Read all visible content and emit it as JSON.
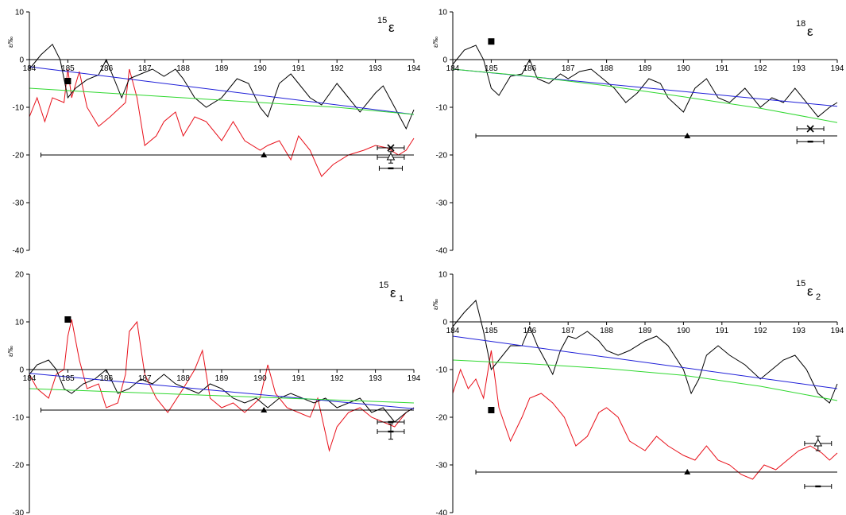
{
  "chart_data": [
    {
      "type": "line",
      "title_sup": "15",
      "title_main": "ε",
      "title_sub": "",
      "ylabel": "ε/‰",
      "ylim": [
        -40,
        10
      ],
      "yticks": [
        10,
        0,
        -10,
        -20,
        -30,
        -40
      ],
      "xlim": [
        184,
        194
      ],
      "xticks": [
        184,
        185,
        186,
        187,
        188,
        189,
        190,
        191,
        192,
        193,
        194
      ],
      "black_series": [
        [
          184,
          -2
        ],
        [
          184.3,
          1
        ],
        [
          184.6,
          3.2
        ],
        [
          184.8,
          0
        ],
        [
          185,
          -8
        ],
        [
          185.2,
          -6
        ],
        [
          185.5,
          -4.2
        ],
        [
          185.8,
          -3.2
        ],
        [
          186,
          0
        ],
        [
          186.2,
          -4
        ],
        [
          186.4,
          -8
        ],
        [
          186.6,
          -4
        ],
        [
          186.9,
          -3
        ],
        [
          187.2,
          -2
        ],
        [
          187.5,
          -3.5
        ],
        [
          187.8,
          -2
        ],
        [
          188,
          -4
        ],
        [
          188.3,
          -8
        ],
        [
          188.6,
          -10
        ],
        [
          189,
          -8
        ],
        [
          189.4,
          -4
        ],
        [
          189.7,
          -5
        ],
        [
          190,
          -10
        ],
        [
          190.2,
          -12
        ],
        [
          190.5,
          -5
        ],
        [
          190.8,
          -3
        ],
        [
          191,
          -5
        ],
        [
          191.3,
          -8
        ],
        [
          191.6,
          -9.5
        ],
        [
          192,
          -5
        ],
        [
          192.3,
          -8
        ],
        [
          192.6,
          -11
        ],
        [
          193,
          -7
        ],
        [
          193.2,
          -5.5
        ],
        [
          193.5,
          -10
        ],
        [
          193.8,
          -14.5
        ],
        [
          194,
          -10.5
        ]
      ],
      "red_series": [
        [
          184,
          -12
        ],
        [
          184.2,
          -8
        ],
        [
          184.4,
          -13
        ],
        [
          184.6,
          -8
        ],
        [
          184.9,
          -9
        ],
        [
          185,
          -2
        ],
        [
          185.1,
          -8
        ],
        [
          185.3,
          -2.5
        ],
        [
          185.5,
          -10
        ],
        [
          185.8,
          -14
        ],
        [
          186.1,
          -12
        ],
        [
          186.5,
          -9
        ],
        [
          186.6,
          -2
        ],
        [
          186.8,
          -8
        ],
        [
          187,
          -18
        ],
        [
          187.3,
          -16
        ],
        [
          187.5,
          -13
        ],
        [
          187.8,
          -11
        ],
        [
          188,
          -16
        ],
        [
          188.3,
          -12
        ],
        [
          188.6,
          -13
        ],
        [
          189,
          -17
        ],
        [
          189.3,
          -13
        ],
        [
          189.6,
          -17
        ],
        [
          190,
          -19
        ],
        [
          190.2,
          -18
        ],
        [
          190.5,
          -17
        ],
        [
          190.8,
          -21
        ],
        [
          191,
          -16
        ],
        [
          191.3,
          -19
        ],
        [
          191.6,
          -24.5
        ],
        [
          191.9,
          -22
        ],
        [
          192.3,
          -20
        ],
        [
          192.7,
          -19
        ],
        [
          193,
          -18
        ],
        [
          193.3,
          -18.5
        ],
        [
          193.6,
          -20
        ],
        [
          193.8,
          -19
        ],
        [
          194,
          -16.5
        ]
      ],
      "blue_line": [
        [
          184,
          -1.5
        ],
        [
          194,
          -11.5
        ]
      ],
      "green_line": [
        [
          184,
          -6
        ],
        [
          186,
          -7
        ],
        [
          188,
          -8
        ],
        [
          190,
          -9
        ],
        [
          192,
          -10
        ],
        [
          194,
          -11.5
        ]
      ],
      "hline": {
        "y": -20,
        "x1": 184.3,
        "x2": 194
      },
      "markers": [
        {
          "shape": "square",
          "x": 185,
          "y": -4.5
        },
        {
          "shape": "triangle",
          "x": 190.1,
          "y": -20
        },
        {
          "shape": "cross",
          "x": 193.4,
          "y": -18.5,
          "xerr": 0.35
        },
        {
          "shape": "open-triangle",
          "x": 193.4,
          "y": -20.5,
          "xerr": 0.35,
          "yerr": 1.2
        },
        {
          "shape": "dash",
          "x": 193.4,
          "y": -22.8,
          "xerr": 0.3
        }
      ]
    },
    {
      "type": "line",
      "title_sup": "18",
      "title_main": "ε",
      "title_sub": "",
      "ylabel": "ε/‰",
      "ylim": [
        -40,
        10
      ],
      "yticks": [
        10,
        0,
        -10,
        -20,
        -30,
        -40
      ],
      "xlim": [
        184,
        194
      ],
      "xticks": [
        184,
        185,
        186,
        187,
        188,
        189,
        190,
        191,
        192,
        193,
        194
      ],
      "black_series": [
        [
          184,
          -1
        ],
        [
          184.3,
          2
        ],
        [
          184.6,
          3
        ],
        [
          184.8,
          0
        ],
        [
          185,
          -6
        ],
        [
          185.2,
          -7.5
        ],
        [
          185.5,
          -3.5
        ],
        [
          185.8,
          -3
        ],
        [
          186,
          0
        ],
        [
          186.2,
          -4
        ],
        [
          186.5,
          -5
        ],
        [
          186.8,
          -3
        ],
        [
          187,
          -4
        ],
        [
          187.3,
          -2.5
        ],
        [
          187.6,
          -2
        ],
        [
          187.9,
          -4
        ],
        [
          188.2,
          -6
        ],
        [
          188.5,
          -9
        ],
        [
          188.8,
          -7
        ],
        [
          189.1,
          -4
        ],
        [
          189.4,
          -5
        ],
        [
          189.6,
          -8
        ],
        [
          190,
          -11
        ],
        [
          190.3,
          -6
        ],
        [
          190.6,
          -4
        ],
        [
          190.9,
          -8
        ],
        [
          191.2,
          -9
        ],
        [
          191.6,
          -6
        ],
        [
          192,
          -10
        ],
        [
          192.3,
          -8
        ],
        [
          192.6,
          -9
        ],
        [
          192.9,
          -6
        ],
        [
          193.2,
          -9
        ],
        [
          193.5,
          -12
        ],
        [
          193.8,
          -10
        ],
        [
          194,
          -9
        ]
      ],
      "red_series": [],
      "blue_line": [
        [
          184,
          -2
        ],
        [
          194,
          -9.8
        ]
      ],
      "green_line": [
        [
          184,
          -2
        ],
        [
          186,
          -3.5
        ],
        [
          188,
          -5.5
        ],
        [
          190,
          -7.8
        ],
        [
          192,
          -10.2
        ],
        [
          194,
          -13.2
        ]
      ],
      "hline": {
        "y": -16,
        "x1": 184.6,
        "x2": 194
      },
      "markers": [
        {
          "shape": "square",
          "x": 185,
          "y": 3.8
        },
        {
          "shape": "triangle",
          "x": 190.1,
          "y": -16
        },
        {
          "shape": "cross",
          "x": 193.3,
          "y": -14.5,
          "xerr": 0.35
        },
        {
          "shape": "dash",
          "x": 193.3,
          "y": -17.2,
          "xerr": 0.35
        }
      ]
    },
    {
      "type": "line",
      "title_sup": "15",
      "title_main": "ε",
      "title_sub": "1",
      "ylabel": "ε/‰",
      "ylim": [
        -30,
        20
      ],
      "yticks": [
        20,
        10,
        0,
        -10,
        -20,
        -30
      ],
      "xlim": [
        184,
        194
      ],
      "xticks": [
        184,
        185,
        186,
        187,
        188,
        189,
        190,
        191,
        192,
        193,
        194
      ],
      "black_series": [
        [
          184,
          -1
        ],
        [
          184.2,
          1
        ],
        [
          184.5,
          2
        ],
        [
          184.7,
          0
        ],
        [
          184.9,
          -4
        ],
        [
          185.1,
          -5
        ],
        [
          185.4,
          -3
        ],
        [
          185.7,
          -2
        ],
        [
          186,
          0
        ],
        [
          186.3,
          -5
        ],
        [
          186.6,
          -4
        ],
        [
          186.9,
          -2
        ],
        [
          187.2,
          -3
        ],
        [
          187.5,
          -1
        ],
        [
          187.8,
          -3
        ],
        [
          188.1,
          -4
        ],
        [
          188.4,
          -5
        ],
        [
          188.7,
          -3
        ],
        [
          189,
          -4
        ],
        [
          189.3,
          -6
        ],
        [
          189.6,
          -7
        ],
        [
          189.9,
          -6
        ],
        [
          190.2,
          -8
        ],
        [
          190.5,
          -6
        ],
        [
          190.8,
          -5
        ],
        [
          191.1,
          -6
        ],
        [
          191.4,
          -7
        ],
        [
          191.7,
          -6
        ],
        [
          192,
          -8
        ],
        [
          192.3,
          -7
        ],
        [
          192.6,
          -6
        ],
        [
          192.9,
          -9
        ],
        [
          193.2,
          -8
        ],
        [
          193.5,
          -11
        ],
        [
          193.8,
          -9
        ],
        [
          194,
          -8
        ]
      ],
      "red_series": [
        [
          184,
          -1
        ],
        [
          184.2,
          -4
        ],
        [
          184.5,
          -6
        ],
        [
          184.7,
          -1
        ],
        [
          184.9,
          0
        ],
        [
          185,
          7
        ],
        [
          185.1,
          10.5
        ],
        [
          185.3,
          2
        ],
        [
          185.5,
          -4
        ],
        [
          185.8,
          -3
        ],
        [
          186,
          -8
        ],
        [
          186.3,
          -7
        ],
        [
          186.5,
          -1
        ],
        [
          186.6,
          8
        ],
        [
          186.8,
          10
        ],
        [
          187,
          -1
        ],
        [
          187.3,
          -6
        ],
        [
          187.6,
          -9
        ],
        [
          188,
          -4
        ],
        [
          188.3,
          0
        ],
        [
          188.5,
          4
        ],
        [
          188.7,
          -6
        ],
        [
          189,
          -8
        ],
        [
          189.3,
          -7
        ],
        [
          189.6,
          -9
        ],
        [
          190,
          -6
        ],
        [
          190.2,
          1
        ],
        [
          190.4,
          -5
        ],
        [
          190.7,
          -8
        ],
        [
          191,
          -9
        ],
        [
          191.3,
          -10
        ],
        [
          191.5,
          -6
        ],
        [
          191.8,
          -17
        ],
        [
          192,
          -12
        ],
        [
          192.3,
          -9
        ],
        [
          192.6,
          -8
        ],
        [
          192.9,
          -10
        ],
        [
          193.2,
          -11
        ],
        [
          193.5,
          -12
        ],
        [
          193.8,
          -9
        ],
        [
          194,
          -8
        ]
      ],
      "blue_line": [
        [
          184,
          -0.8
        ],
        [
          194,
          -8.2
        ]
      ],
      "green_line": [
        [
          184,
          -4
        ],
        [
          186,
          -4.6
        ],
        [
          188,
          -5.2
        ],
        [
          190,
          -5.8
        ],
        [
          192,
          -6.4
        ],
        [
          194,
          -7
        ]
      ],
      "hline": {
        "y": -8.5,
        "x1": 184.3,
        "x2": 194
      },
      "markers": [
        {
          "shape": "square",
          "x": 185,
          "y": 10.5
        },
        {
          "shape": "triangle",
          "x": 190.1,
          "y": -8.5
        },
        {
          "shape": "dash",
          "x": 193.4,
          "y": -11,
          "xerr": 0.35
        },
        {
          "shape": "dash",
          "x": 193.4,
          "y": -13,
          "xerr": 0.35,
          "yerr": 1.6
        }
      ]
    },
    {
      "type": "line",
      "title_sup": "15",
      "title_main": "ε",
      "title_sub": "2",
      "ylabel": "ε/‰",
      "ylim": [
        -40,
        10
      ],
      "yticks": [
        10,
        0,
        -10,
        -20,
        -30,
        -40
      ],
      "xlim": [
        184,
        194
      ],
      "xticks": [
        184,
        185,
        186,
        187,
        188,
        189,
        190,
        191,
        192,
        193,
        194
      ],
      "black_series": [
        [
          184,
          -1
        ],
        [
          184.3,
          2
        ],
        [
          184.6,
          4.5
        ],
        [
          184.8,
          -2
        ],
        [
          185,
          -10
        ],
        [
          185.2,
          -8
        ],
        [
          185.5,
          -5
        ],
        [
          185.8,
          -5
        ],
        [
          186,
          -1
        ],
        [
          186.2,
          -5
        ],
        [
          186.4,
          -8
        ],
        [
          186.6,
          -11
        ],
        [
          186.8,
          -6
        ],
        [
          187,
          -3
        ],
        [
          187.2,
          -3.5
        ],
        [
          187.5,
          -2
        ],
        [
          187.8,
          -4
        ],
        [
          188,
          -6
        ],
        [
          188.3,
          -7
        ],
        [
          188.6,
          -6
        ],
        [
          189,
          -4
        ],
        [
          189.3,
          -3
        ],
        [
          189.6,
          -5
        ],
        [
          190,
          -10
        ],
        [
          190.2,
          -15
        ],
        [
          190.4,
          -12
        ],
        [
          190.6,
          -7
        ],
        [
          190.9,
          -5
        ],
        [
          191.2,
          -7
        ],
        [
          191.6,
          -9
        ],
        [
          192,
          -12
        ],
        [
          192.3,
          -10
        ],
        [
          192.6,
          -8
        ],
        [
          192.9,
          -7
        ],
        [
          193.2,
          -10
        ],
        [
          193.5,
          -15
        ],
        [
          193.8,
          -17
        ],
        [
          194,
          -13
        ]
      ],
      "red_series": [
        [
          184,
          -15
        ],
        [
          184.2,
          -10
        ],
        [
          184.4,
          -14
        ],
        [
          184.6,
          -12
        ],
        [
          184.8,
          -16
        ],
        [
          185,
          -6
        ],
        [
          185.2,
          -18
        ],
        [
          185.5,
          -25
        ],
        [
          185.8,
          -20
        ],
        [
          186,
          -16
        ],
        [
          186.3,
          -15
        ],
        [
          186.6,
          -17
        ],
        [
          186.9,
          -20
        ],
        [
          187.2,
          -26
        ],
        [
          187.5,
          -24
        ],
        [
          187.8,
          -19
        ],
        [
          188,
          -18
        ],
        [
          188.3,
          -20
        ],
        [
          188.6,
          -25
        ],
        [
          189,
          -27
        ],
        [
          189.3,
          -24
        ],
        [
          189.6,
          -26
        ],
        [
          190,
          -28
        ],
        [
          190.3,
          -29
        ],
        [
          190.6,
          -26
        ],
        [
          190.9,
          -29
        ],
        [
          191.2,
          -30
        ],
        [
          191.5,
          -32
        ],
        [
          191.8,
          -33
        ],
        [
          192.1,
          -30
        ],
        [
          192.4,
          -31
        ],
        [
          192.7,
          -29
        ],
        [
          193,
          -27
        ],
        [
          193.3,
          -26
        ],
        [
          193.6,
          -27.5
        ],
        [
          193.8,
          -29
        ],
        [
          194,
          -27.5
        ]
      ],
      "blue_line": [
        [
          184,
          -3
        ],
        [
          194,
          -14
        ]
      ],
      "green_line": [
        [
          184,
          -8
        ],
        [
          186,
          -8.8
        ],
        [
          188,
          -9.8
        ],
        [
          190,
          -11.2
        ],
        [
          192,
          -13.5
        ],
        [
          194,
          -16.5
        ]
      ],
      "hline": {
        "y": -31.5,
        "x1": 184.6,
        "x2": 194
      },
      "markers": [
        {
          "shape": "square",
          "x": 185,
          "y": -18.5
        },
        {
          "shape": "triangle",
          "x": 190.1,
          "y": -31.5
        },
        {
          "shape": "open-triangle",
          "x": 193.5,
          "y": -25.5,
          "xerr": 0.35,
          "yerr": 1.5
        },
        {
          "shape": "dash",
          "x": 193.5,
          "y": -34.5,
          "xerr": 0.35
        }
      ]
    }
  ],
  "colors": {
    "black": "#000000",
    "red": "#e8101a",
    "blue": "#1f1fd8",
    "green": "#2fd82f"
  }
}
